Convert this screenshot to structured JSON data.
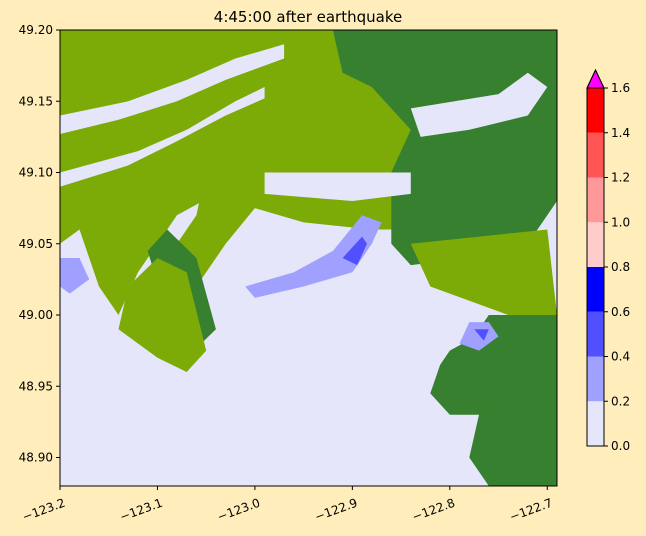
{
  "chart_data": {
    "type": "heatmap",
    "title": "4:45:00 after earthquake",
    "xlabel": "",
    "ylabel": "",
    "xlim": [
      -123.2,
      -122.69
    ],
    "ylim": [
      48.88,
      49.2
    ],
    "x_ticks": [
      "−123.2",
      "−123.1",
      "−123.0",
      "−122.9",
      "−122.8",
      "−122.7"
    ],
    "x_tick_values": [
      -123.2,
      -123.1,
      -123.0,
      -122.9,
      -122.8,
      -122.7
    ],
    "y_ticks": [
      "48.90",
      "48.95",
      "49.00",
      "49.05",
      "49.10",
      "49.15",
      "49.20"
    ],
    "y_tick_values": [
      48.9,
      48.95,
      49.0,
      49.05,
      49.1,
      49.15,
      49.2
    ],
    "grid": false,
    "colorbar": {
      "ticks": [
        "0.0",
        "0.2",
        "0.4",
        "0.6",
        "0.8",
        "1.0",
        "1.2",
        "1.4",
        "1.6"
      ],
      "tick_values": [
        0.0,
        0.2,
        0.4,
        0.6,
        0.8,
        1.0,
        1.2,
        1.4,
        1.6
      ],
      "bin_colors": [
        "#e6e6fa",
        "#a0a0ff",
        "#5050ff",
        "#0000ff",
        "#ffcccc",
        "#ff9999",
        "#ff5555",
        "#ff0000"
      ],
      "extend_color": "#ff00ff"
    },
    "colors": {
      "water": "#e6e6fa",
      "land_low": "#7cab07",
      "land_high": "#36802f",
      "background": "#ffeebb"
    },
    "land_regions": [
      {
        "level": "low",
        "polygon": [
          [
            -123.2,
            49.2
          ],
          [
            -122.98,
            49.2
          ],
          [
            -122.95,
            49.195
          ],
          [
            -122.95,
            49.1
          ],
          [
            -123.0,
            49.09
          ],
          [
            -123.04,
            49.085
          ],
          [
            -123.08,
            49.07
          ],
          [
            -123.1,
            49.05
          ],
          [
            -123.12,
            49.03
          ],
          [
            -123.14,
            49.0
          ],
          [
            -123.16,
            49.02
          ],
          [
            -123.18,
            49.06
          ],
          [
            -123.2,
            49.05
          ]
        ]
      },
      {
        "level": "low",
        "polygon": [
          [
            -123.02,
            49.2
          ],
          [
            -122.83,
            49.2
          ],
          [
            -122.83,
            49.06
          ],
          [
            -122.88,
            49.06
          ],
          [
            -122.95,
            49.065
          ],
          [
            -123.0,
            49.075
          ],
          [
            -123.03,
            49.05
          ],
          [
            -123.06,
            49.02
          ],
          [
            -123.08,
            49.05
          ],
          [
            -123.06,
            49.07
          ]
        ]
      },
      {
        "level": "high",
        "polygon": [
          [
            -122.92,
            49.2
          ],
          [
            -122.69,
            49.2
          ],
          [
            -122.69,
            49.08
          ],
          [
            -122.72,
            49.05
          ],
          [
            -122.78,
            49.04
          ],
          [
            -122.84,
            49.035
          ],
          [
            -122.86,
            49.05
          ],
          [
            -122.86,
            49.1
          ],
          [
            -122.84,
            49.13
          ],
          [
            -122.88,
            49.16
          ],
          [
            -122.91,
            49.17
          ]
        ]
      },
      {
        "level": "high",
        "polygon": [
          [
            -123.11,
            49.045
          ],
          [
            -123.09,
            49.0
          ],
          [
            -123.07,
            48.97
          ],
          [
            -123.04,
            48.99
          ],
          [
            -123.06,
            49.04
          ],
          [
            -123.09,
            49.06
          ]
        ]
      },
      {
        "level": "low",
        "polygon": [
          [
            -123.14,
            48.99
          ],
          [
            -123.1,
            48.97
          ],
          [
            -123.07,
            48.96
          ],
          [
            -123.05,
            48.975
          ],
          [
            -123.07,
            49.03
          ],
          [
            -123.1,
            49.04
          ],
          [
            -123.13,
            49.02
          ]
        ]
      },
      {
        "level": "high",
        "polygon": [
          [
            -122.76,
            49.0
          ],
          [
            -122.69,
            49.0
          ],
          [
            -122.69,
            48.88
          ],
          [
            -122.76,
            48.88
          ],
          [
            -122.78,
            48.9
          ],
          [
            -122.77,
            48.93
          ],
          [
            -122.79,
            48.95
          ],
          [
            -122.8,
            48.96
          ],
          [
            -122.78,
            48.98
          ]
        ]
      },
      {
        "level": "high",
        "polygon": [
          [
            -122.8,
            48.975
          ],
          [
            -122.76,
            48.99
          ],
          [
            -122.72,
            48.98
          ],
          [
            -122.7,
            48.95
          ],
          [
            -122.74,
            48.93
          ],
          [
            -122.8,
            48.93
          ],
          [
            -122.82,
            48.945
          ],
          [
            -122.81,
            48.965
          ]
        ]
      },
      {
        "level": "low",
        "polygon": [
          [
            -122.84,
            49.05
          ],
          [
            -122.7,
            49.06
          ],
          [
            -122.69,
            49.0
          ],
          [
            -122.74,
            49.0
          ],
          [
            -122.78,
            49.01
          ],
          [
            -122.82,
            49.02
          ]
        ]
      },
      {
        "level": "high",
        "polygon": [
          [
            -122.8,
            49.12
          ],
          [
            -122.78,
            49.1
          ],
          [
            -122.74,
            49.09
          ],
          [
            -122.71,
            49.11
          ],
          [
            -122.69,
            49.13
          ],
          [
            -122.69,
            49.2
          ],
          [
            -122.74,
            49.19
          ],
          [
            -122.78,
            49.15
          ]
        ]
      }
    ],
    "water_regions": [
      {
        "polygon": [
          [
            -123.2,
            49.14
          ],
          [
            -123.13,
            49.15
          ],
          [
            -123.07,
            49.165
          ],
          [
            -123.02,
            49.18
          ],
          [
            -122.97,
            49.19
          ],
          [
            -122.97,
            49.18
          ],
          [
            -123.03,
            49.165
          ],
          [
            -123.08,
            49.15
          ],
          [
            -123.14,
            49.137
          ],
          [
            -123.2,
            49.127
          ]
        ]
      },
      {
        "polygon": [
          [
            -123.2,
            49.1
          ],
          [
            -123.12,
            49.115
          ],
          [
            -123.07,
            49.13
          ],
          [
            -123.02,
            49.15
          ],
          [
            -122.99,
            49.16
          ],
          [
            -122.99,
            49.152
          ],
          [
            -123.03,
            49.14
          ],
          [
            -123.08,
            49.122
          ],
          [
            -123.13,
            49.105
          ],
          [
            -123.2,
            49.09
          ]
        ]
      },
      {
        "polygon": [
          [
            -122.84,
            49.145
          ],
          [
            -122.75,
            49.155
          ],
          [
            -122.72,
            49.17
          ],
          [
            -122.7,
            49.16
          ],
          [
            -122.72,
            49.14
          ],
          [
            -122.78,
            49.13
          ],
          [
            -122.83,
            49.125
          ]
        ]
      },
      {
        "polygon": [
          [
            -122.99,
            49.1
          ],
          [
            -122.84,
            49.1
          ],
          [
            -122.84,
            49.085
          ],
          [
            -122.9,
            49.08
          ],
          [
            -122.99,
            49.085
          ]
        ]
      }
    ],
    "inundation_regions": [
      {
        "level": 0.3,
        "polygon": [
          [
            -123.01,
            49.02
          ],
          [
            -122.96,
            49.03
          ],
          [
            -122.92,
            49.045
          ],
          [
            -122.89,
            49.07
          ],
          [
            -122.87,
            49.065
          ],
          [
            -122.88,
            49.05
          ],
          [
            -122.9,
            49.03
          ],
          [
            -122.95,
            49.02
          ],
          [
            -123.0,
            49.012
          ]
        ]
      },
      {
        "level": 0.5,
        "polygon": [
          [
            -122.91,
            49.04
          ],
          [
            -122.89,
            49.055
          ],
          [
            -122.885,
            49.05
          ],
          [
            -122.895,
            49.035
          ]
        ]
      },
      {
        "level": 0.3,
        "polygon": [
          [
            -123.2,
            49.04
          ],
          [
            -123.18,
            49.04
          ],
          [
            -123.17,
            49.025
          ],
          [
            -123.19,
            49.015
          ],
          [
            -123.2,
            49.02
          ]
        ]
      },
      {
        "level": 0.3,
        "polygon": [
          [
            -122.78,
            48.995
          ],
          [
            -122.76,
            48.995
          ],
          [
            -122.75,
            48.985
          ],
          [
            -122.77,
            48.975
          ],
          [
            -122.79,
            48.98
          ]
        ]
      },
      {
        "level": 0.5,
        "polygon": [
          [
            -122.775,
            48.99
          ],
          [
            -122.76,
            48.99
          ],
          [
            -122.765,
            48.982
          ]
        ]
      }
    ]
  }
}
